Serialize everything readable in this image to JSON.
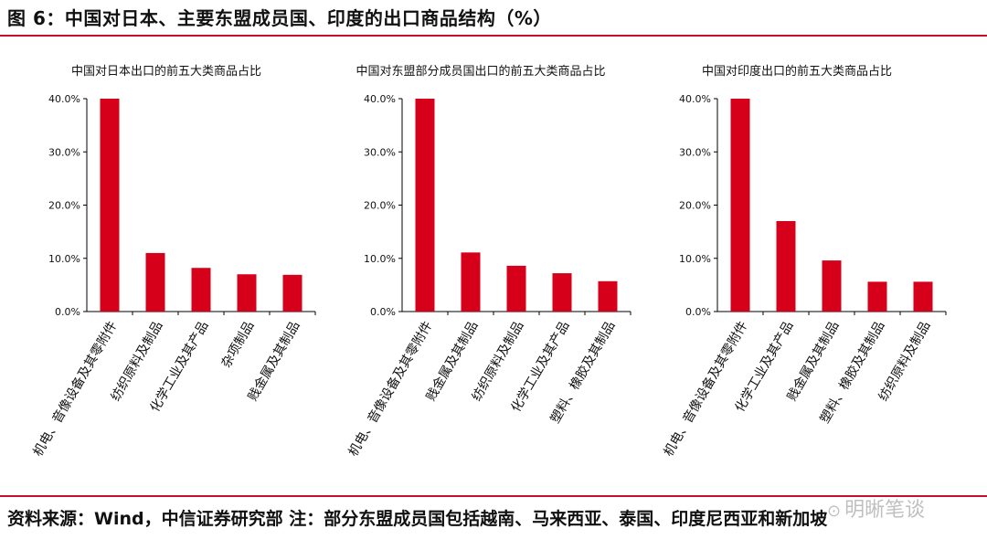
{
  "figure": {
    "title": "图 6：中国对日本、主要东盟成员国、印度的出口商品结构（%）",
    "source": "资料来源：Wind，中信证券研究部  注：部分东盟成员国包括越南、马来西亚、泰国、印度尼西亚和新加坡",
    "watermark": "明晰笔谈",
    "watermark_icon": "wechat-icon"
  },
  "colors": {
    "bar": "#d7001b",
    "axis": "#000000",
    "rule": "#c8102e"
  },
  "chart_data": [
    {
      "type": "bar",
      "title": "中国对日本出口的前五大类商品占比",
      "categories": [
        "机电、音像设备及其零附件",
        "纺织原料及制品",
        "化学工业及其产品",
        "杂项制品",
        "贱金属及其制品"
      ],
      "values": [
        40.0,
        11.0,
        8.2,
        7.0,
        6.9
      ],
      "ylim": [
        0,
        40
      ],
      "yticks": [
        "0.0%",
        "10.0%",
        "20.0%",
        "30.0%",
        "40.0%"
      ],
      "xlabel": "",
      "ylabel": "",
      "grid": false
    },
    {
      "type": "bar",
      "title": "中国对东盟部分成员国出口的前五大类商品占比",
      "categories": [
        "机电、音像设备及其零附件",
        "贱金属及其制品",
        "纺织原料及制品",
        "化学工业及其产品",
        "塑料、橡胶及其制品"
      ],
      "values": [
        40.0,
        11.1,
        8.6,
        7.2,
        5.7
      ],
      "ylim": [
        0,
        40
      ],
      "yticks": [
        "0.0%",
        "10.0%",
        "20.0%",
        "30.0%",
        "40.0%"
      ],
      "xlabel": "",
      "ylabel": "",
      "grid": false
    },
    {
      "type": "bar",
      "title": "中国对印度出口的前五大类商品占比",
      "categories": [
        "机电、音像设备及其零附件",
        "化学工业及其产品",
        "贱金属及其制品",
        "塑料、橡胶及其制品",
        "纺织原料及制品"
      ],
      "values": [
        40.0,
        17.0,
        9.6,
        5.6,
        5.6
      ],
      "ylim": [
        0,
        40
      ],
      "yticks": [
        "0.0%",
        "10.0%",
        "20.0%",
        "30.0%",
        "40.0%"
      ],
      "xlabel": "",
      "ylabel": "",
      "grid": false
    }
  ]
}
